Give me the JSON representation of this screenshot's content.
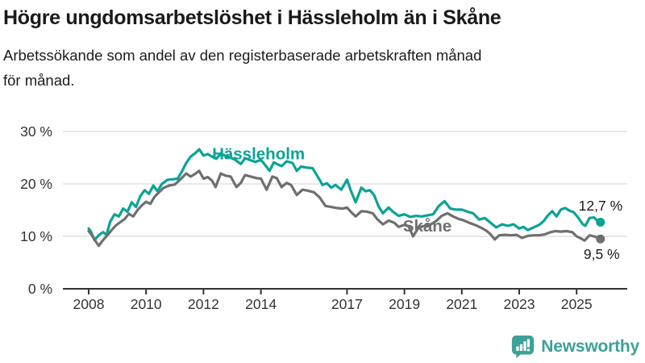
{
  "chart_data": {
    "type": "line",
    "title": "Högre ungdomsarbetslöshet i Hässleholm än i Skåne",
    "subtitle": "Arbetssökande som andel av den registerbaserade arbetskraften månad för månad.",
    "x_unit": "decimal_year",
    "xlim": [
      2007.1,
      2026.8
    ],
    "ylim": [
      0,
      30
    ],
    "grid": "horizontal",
    "legend_position": "inline-labels",
    "y_axis": {
      "ticks": [
        {
          "value": 30,
          "label": "30 %"
        },
        {
          "value": 20,
          "label": "20 %"
        },
        {
          "value": 10,
          "label": "10 %"
        },
        {
          "value": 0,
          "label": "0 %"
        }
      ]
    },
    "x_axis": {
      "ticks": [
        {
          "value": 2008,
          "label": "2008"
        },
        {
          "value": 2010,
          "label": "2010"
        },
        {
          "value": 2012,
          "label": "2012"
        },
        {
          "value": 2014,
          "label": "2014"
        },
        {
          "value": 2017,
          "label": "2017"
        },
        {
          "value": 2019,
          "label": "2019"
        },
        {
          "value": 2021,
          "label": "2021"
        },
        {
          "value": 2023,
          "label": "2023"
        },
        {
          "value": 2025,
          "label": "2025"
        }
      ]
    },
    "series": [
      {
        "name": "Hässleholm",
        "color": "#0aa396",
        "end_value": 12.7,
        "points": [
          [
            2008.0,
            11.5
          ],
          [
            2008.08,
            10.9
          ],
          [
            2008.2,
            9.3
          ],
          [
            2008.35,
            10.2
          ],
          [
            2008.5,
            10.8
          ],
          [
            2008.62,
            10.3
          ],
          [
            2008.75,
            12.8
          ],
          [
            2008.9,
            14.2
          ],
          [
            2009.05,
            13.8
          ],
          [
            2009.2,
            15.3
          ],
          [
            2009.35,
            14.7
          ],
          [
            2009.5,
            16.5
          ],
          [
            2009.65,
            15.6
          ],
          [
            2009.8,
            17.7
          ],
          [
            2009.95,
            18.8
          ],
          [
            2010.1,
            18.1
          ],
          [
            2010.25,
            19.7
          ],
          [
            2010.4,
            18.6
          ],
          [
            2010.55,
            20.0
          ],
          [
            2010.75,
            20.8
          ],
          [
            2010.95,
            20.9
          ],
          [
            2011.1,
            21.0
          ],
          [
            2011.25,
            22.4
          ],
          [
            2011.4,
            24.0
          ],
          [
            2011.55,
            25.2
          ],
          [
            2011.7,
            25.8
          ],
          [
            2011.85,
            26.6
          ],
          [
            2012.0,
            25.4
          ],
          [
            2012.15,
            25.7
          ],
          [
            2012.3,
            25.2
          ],
          [
            2012.45,
            24.8
          ],
          [
            2012.6,
            25.8
          ],
          [
            2012.75,
            25.4
          ],
          [
            2012.95,
            25.0
          ],
          [
            2013.1,
            24.6
          ],
          [
            2013.3,
            23.8
          ],
          [
            2013.45,
            24.9
          ],
          [
            2013.6,
            24.6
          ],
          [
            2013.8,
            24.2
          ],
          [
            2014.0,
            24.6
          ],
          [
            2014.15,
            23.6
          ],
          [
            2014.3,
            22.5
          ],
          [
            2014.45,
            24.1
          ],
          [
            2014.6,
            23.7
          ],
          [
            2014.72,
            23.4
          ],
          [
            2014.9,
            24.3
          ],
          [
            2015.1,
            24.0
          ],
          [
            2015.25,
            22.5
          ],
          [
            2015.4,
            23.3
          ],
          [
            2015.6,
            23.1
          ],
          [
            2015.8,
            23.0
          ],
          [
            2016.0,
            21.2
          ],
          [
            2016.15,
            19.8
          ],
          [
            2016.3,
            20.1
          ],
          [
            2016.45,
            19.3
          ],
          [
            2016.6,
            19.8
          ],
          [
            2016.8,
            18.9
          ],
          [
            2017.0,
            20.8
          ],
          [
            2017.15,
            18.5
          ],
          [
            2017.3,
            16.5
          ],
          [
            2017.5,
            19.3
          ],
          [
            2017.65,
            18.6
          ],
          [
            2017.8,
            18.8
          ],
          [
            2017.95,
            17.8
          ],
          [
            2018.1,
            15.7
          ],
          [
            2018.25,
            14.4
          ],
          [
            2018.45,
            15.5
          ],
          [
            2018.6,
            14.7
          ],
          [
            2018.8,
            13.9
          ],
          [
            2019.0,
            14.2
          ],
          [
            2019.2,
            13.7
          ],
          [
            2019.4,
            13.9
          ],
          [
            2019.6,
            13.8
          ],
          [
            2019.8,
            14.0
          ],
          [
            2020.0,
            14.2
          ],
          [
            2020.2,
            15.8
          ],
          [
            2020.4,
            16.7
          ],
          [
            2020.6,
            15.3
          ],
          [
            2020.8,
            15.1
          ],
          [
            2021.0,
            15.1
          ],
          [
            2021.2,
            14.7
          ],
          [
            2021.4,
            14.4
          ],
          [
            2021.6,
            13.2
          ],
          [
            2021.8,
            13.5
          ],
          [
            2022.0,
            12.6
          ],
          [
            2022.2,
            11.7
          ],
          [
            2022.4,
            12.3
          ],
          [
            2022.6,
            12.0
          ],
          [
            2022.8,
            12.3
          ],
          [
            2023.0,
            11.5
          ],
          [
            2023.15,
            11.8
          ],
          [
            2023.3,
            11.2
          ],
          [
            2023.5,
            11.7
          ],
          [
            2023.7,
            12.2
          ],
          [
            2023.85,
            12.9
          ],
          [
            2024.0,
            14.0
          ],
          [
            2024.15,
            14.8
          ],
          [
            2024.3,
            13.8
          ],
          [
            2024.45,
            15.1
          ],
          [
            2024.6,
            15.4
          ],
          [
            2024.75,
            14.9
          ],
          [
            2024.9,
            14.6
          ],
          [
            2025.05,
            13.6
          ],
          [
            2025.2,
            12.4
          ],
          [
            2025.3,
            12.0
          ],
          [
            2025.45,
            13.5
          ],
          [
            2025.6,
            13.6
          ],
          [
            2025.72,
            13.0
          ],
          [
            2025.83,
            12.7
          ]
        ]
      },
      {
        "name": "Skåne",
        "color": "#6f6f6f",
        "end_value": 9.5,
        "points": [
          [
            2008.0,
            11.0
          ],
          [
            2008.1,
            10.3
          ],
          [
            2008.2,
            9.4
          ],
          [
            2008.35,
            8.2
          ],
          [
            2008.5,
            9.3
          ],
          [
            2008.65,
            10.2
          ],
          [
            2008.8,
            11.2
          ],
          [
            2008.95,
            12.1
          ],
          [
            2009.1,
            12.7
          ],
          [
            2009.25,
            13.3
          ],
          [
            2009.4,
            14.3
          ],
          [
            2009.55,
            13.8
          ],
          [
            2009.7,
            15.0
          ],
          [
            2009.85,
            15.9
          ],
          [
            2010.0,
            16.6
          ],
          [
            2010.15,
            16.2
          ],
          [
            2010.3,
            17.6
          ],
          [
            2010.45,
            18.4
          ],
          [
            2010.6,
            19.2
          ],
          [
            2010.8,
            19.7
          ],
          [
            2011.0,
            19.9
          ],
          [
            2011.2,
            20.9
          ],
          [
            2011.4,
            22.0
          ],
          [
            2011.55,
            21.4
          ],
          [
            2011.7,
            21.9
          ],
          [
            2011.85,
            22.5
          ],
          [
            2012.0,
            21.0
          ],
          [
            2012.15,
            21.3
          ],
          [
            2012.3,
            20.6
          ],
          [
            2012.42,
            19.4
          ],
          [
            2012.6,
            22.0
          ],
          [
            2012.75,
            21.6
          ],
          [
            2012.95,
            21.4
          ],
          [
            2013.15,
            19.4
          ],
          [
            2013.3,
            20.2
          ],
          [
            2013.45,
            21.7
          ],
          [
            2013.65,
            21.4
          ],
          [
            2013.85,
            21.1
          ],
          [
            2014.0,
            21.0
          ],
          [
            2014.2,
            18.9
          ],
          [
            2014.4,
            21.4
          ],
          [
            2014.55,
            21.1
          ],
          [
            2014.72,
            19.4
          ],
          [
            2014.9,
            20.2
          ],
          [
            2015.05,
            19.8
          ],
          [
            2015.25,
            17.9
          ],
          [
            2015.45,
            18.9
          ],
          [
            2015.65,
            18.7
          ],
          [
            2015.85,
            18.4
          ],
          [
            2016.05,
            17.4
          ],
          [
            2016.25,
            15.8
          ],
          [
            2016.45,
            15.6
          ],
          [
            2016.65,
            15.4
          ],
          [
            2016.85,
            15.3
          ],
          [
            2017.0,
            15.5
          ],
          [
            2017.15,
            14.6
          ],
          [
            2017.3,
            13.8
          ],
          [
            2017.5,
            14.8
          ],
          [
            2017.7,
            14.7
          ],
          [
            2017.9,
            14.4
          ],
          [
            2018.05,
            13.3
          ],
          [
            2018.25,
            12.3
          ],
          [
            2018.45,
            13.0
          ],
          [
            2018.65,
            12.6
          ],
          [
            2018.8,
            11.8
          ],
          [
            2019.0,
            12.2
          ],
          [
            2019.15,
            11.9
          ],
          [
            2019.3,
            10.0
          ],
          [
            2019.5,
            11.7
          ],
          [
            2019.7,
            12.0
          ],
          [
            2019.9,
            12.2
          ],
          [
            2020.1,
            12.9
          ],
          [
            2020.3,
            13.9
          ],
          [
            2020.5,
            14.4
          ],
          [
            2020.7,
            13.8
          ],
          [
            2020.9,
            13.3
          ],
          [
            2021.05,
            13.1
          ],
          [
            2021.25,
            12.6
          ],
          [
            2021.45,
            12.2
          ],
          [
            2021.65,
            11.7
          ],
          [
            2021.85,
            11.1
          ],
          [
            2022.0,
            10.4
          ],
          [
            2022.15,
            9.4
          ],
          [
            2022.3,
            10.2
          ],
          [
            2022.5,
            10.3
          ],
          [
            2022.7,
            10.2
          ],
          [
            2022.9,
            10.3
          ],
          [
            2023.1,
            9.7
          ],
          [
            2023.3,
            10.1
          ],
          [
            2023.5,
            10.2
          ],
          [
            2023.7,
            10.2
          ],
          [
            2023.9,
            10.4
          ],
          [
            2024.1,
            10.8
          ],
          [
            2024.25,
            11.0
          ],
          [
            2024.45,
            10.9
          ],
          [
            2024.65,
            11.0
          ],
          [
            2024.85,
            10.8
          ],
          [
            2025.0,
            10.0
          ],
          [
            2025.15,
            9.6
          ],
          [
            2025.28,
            9.2
          ],
          [
            2025.45,
            10.2
          ],
          [
            2025.6,
            10.0
          ],
          [
            2025.72,
            9.8
          ],
          [
            2025.83,
            9.5
          ]
        ]
      }
    ],
    "series_labels": [
      {
        "text": "Hässleholm",
        "year": 2012.3,
        "value": 24.7,
        "anchor": "start",
        "color": "#0aa396"
      },
      {
        "text": "Skåne",
        "year": 2018.95,
        "value": 10.9,
        "anchor": "start",
        "color": "#6f6f6f"
      }
    ],
    "end_labels": [
      {
        "text": "12,7 %",
        "year": 2026.6,
        "value": 14.9,
        "anchor": "end"
      },
      {
        "text": "9,5 %",
        "year": 2026.5,
        "value": 5.7,
        "anchor": "end"
      }
    ],
    "colors": {
      "grid": "#d9d9d9",
      "axis": "#333333",
      "tick_text": "#333333",
      "annotation_text": "#1a1a1a"
    }
  },
  "footer": {
    "brand": "Newsworthy",
    "brand_color": "#3da197",
    "icon": "newsworthy-chart-bubble-icon"
  }
}
